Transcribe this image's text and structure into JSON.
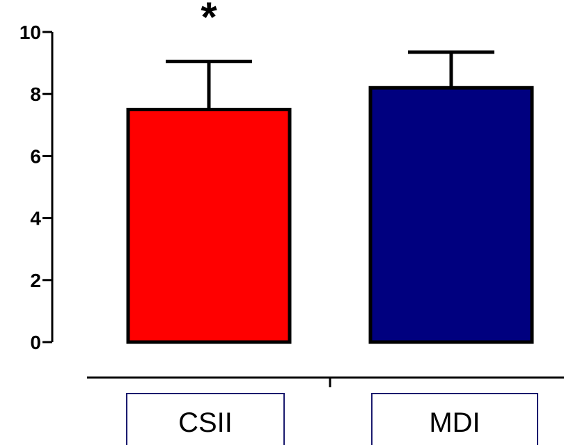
{
  "chart_data": {
    "type": "bar",
    "title": "",
    "xlabel": "",
    "ylabel": "",
    "categories": [
      "CSII",
      "MDI"
    ],
    "values": [
      7.5,
      8.2
    ],
    "errors": [
      1.55,
      1.15
    ],
    "colors": [
      "#ff0000",
      "#00007f"
    ],
    "annotations": [
      {
        "category": "CSII",
        "text": "*"
      }
    ],
    "ylim": [
      0,
      10
    ],
    "yticks": [
      "0",
      "2",
      "4",
      "6",
      "8",
      "10"
    ],
    "grid": false,
    "legend": "none"
  }
}
